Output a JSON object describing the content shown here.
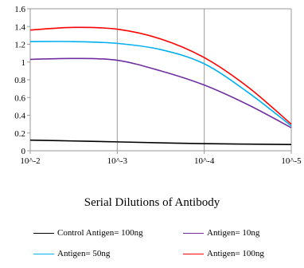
{
  "chart_data": {
    "type": "line",
    "xlabel": "Serial Dilutions of Antibody",
    "ylabel": "",
    "categories": [
      "10^-2",
      "10^-3",
      "10^-4",
      "10^-5"
    ],
    "x_scale": "log",
    "ylim": [
      0,
      1.6
    ],
    "yticks": [
      "0",
      "0.2",
      "0.4",
      "0.6",
      "0.8",
      "1",
      "1.2",
      "1.4",
      "1.6"
    ],
    "grid": "vertical",
    "legend_position": "bottom",
    "series": [
      {
        "name": "Control Antigen= 100ng",
        "color": "#000000",
        "points": [
          [
            0,
            0.12
          ],
          [
            0.5,
            0.11
          ],
          [
            1,
            0.1
          ],
          [
            2,
            0.08
          ],
          [
            3,
            0.07
          ]
        ]
      },
      {
        "name": "Antigen= 10ng",
        "color": "#7030a0",
        "points": [
          [
            0,
            1.03
          ],
          [
            0.5,
            1.04
          ],
          [
            1,
            1.02
          ],
          [
            1.5,
            0.9
          ],
          [
            2,
            0.74
          ],
          [
            2.5,
            0.52
          ],
          [
            3,
            0.26
          ]
        ]
      },
      {
        "name": "Antigen= 50ng",
        "color": "#00b0f0",
        "points": [
          [
            0,
            1.23
          ],
          [
            0.5,
            1.23
          ],
          [
            1,
            1.21
          ],
          [
            1.5,
            1.14
          ],
          [
            2,
            0.98
          ],
          [
            2.5,
            0.66
          ],
          [
            3,
            0.28
          ]
        ]
      },
      {
        "name": "Antigen= 100ng",
        "color": "#ff0000",
        "points": [
          [
            0,
            1.36
          ],
          [
            0.5,
            1.39
          ],
          [
            1,
            1.37
          ],
          [
            1.5,
            1.26
          ],
          [
            2,
            1.05
          ],
          [
            2.5,
            0.72
          ],
          [
            3,
            0.3
          ]
        ]
      }
    ]
  }
}
